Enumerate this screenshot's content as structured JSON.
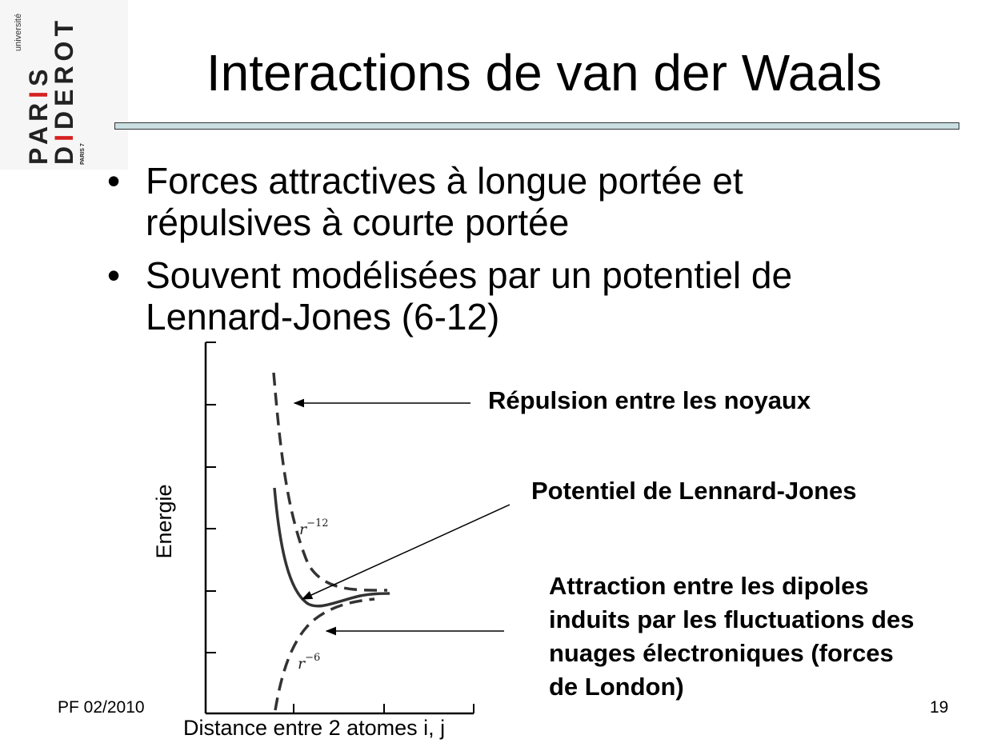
{
  "logo": {
    "universite": "université",
    "paris": "PARIS",
    "diderot": "DIDEROT",
    "paris7": "PARIS 7"
  },
  "title": "Interactions de van der Waals",
  "bullets": [
    "Forces attractives à longue portée et répulsives à courte portée",
    "Souvent modélisées par un potentiel de Lennard-Jones (6-12)"
  ],
  "figure": {
    "y_axis_label": "Energie",
    "x_axis_label": "Distance entre 2 atomes i, j",
    "curve_label_r12": "r",
    "curve_label_r12_exp": "−12",
    "curve_label_r6": "r",
    "curve_label_r6_exp": "−6"
  },
  "annotations": {
    "repulsion": "Répulsion entre les noyaux",
    "potentiel": "Potentiel de Lennard-Jones",
    "attraction_lines": [
      "Attraction entre les dipoles",
      "induits par les fluctuations des",
      "nuages électroniques (forces",
      "de London)"
    ]
  },
  "footer": {
    "left": "PF 02/2010",
    "page": "19"
  },
  "colors": {
    "rule_fill": "#c9dfe2",
    "logo_accent": "#d62121"
  }
}
